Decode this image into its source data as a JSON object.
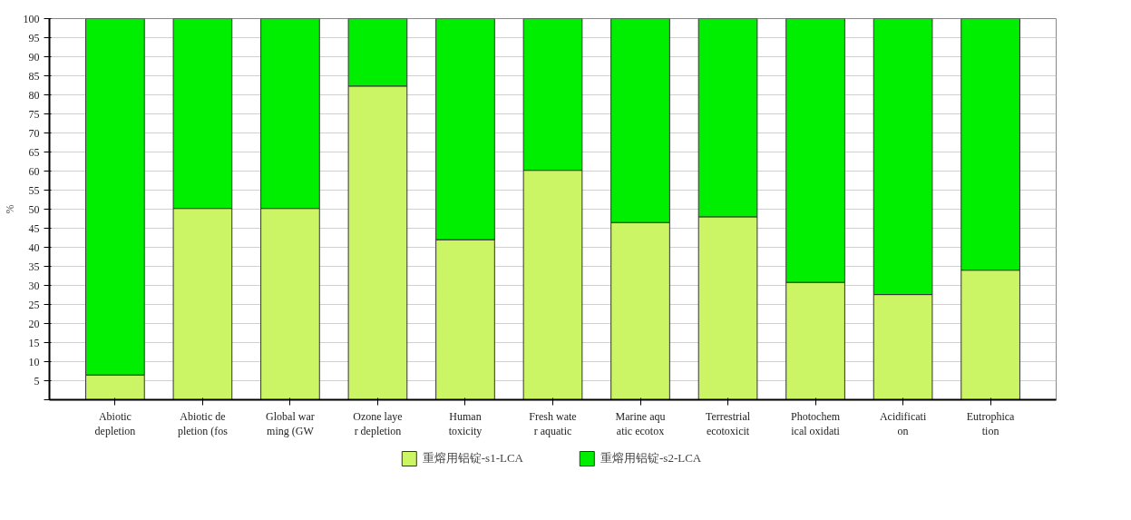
{
  "chart_data": {
    "type": "bar",
    "stacked": true,
    "ylabel": "%",
    "categories": [
      "Abiotic\ndepletion",
      "Abiotic de\npletion (fos",
      "Global war\nming (GW",
      "Ozone laye\nr depletion",
      "Human\ntoxicity",
      "Fresh wate\nr aquatic",
      "Marine aqu\natic ecotox",
      "Terrestrial\necotoxicit",
      "Photochem\nical oxidati",
      "Acidificati\non",
      "Eutrophica\ntion"
    ],
    "series": [
      {
        "name": "重熔用铝锭-s1-LCA",
        "color": "#ccf566",
        "values": [
          6.5,
          50.2,
          50.2,
          82.3,
          42,
          60.2,
          46.5,
          48,
          30.8,
          27.6,
          34
        ]
      },
      {
        "name": "重熔用铝锭-s2-LCA",
        "color": "#00ee00",
        "values": [
          93.5,
          49.8,
          49.8,
          17.7,
          58,
          39.8,
          53.5,
          52,
          69.2,
          72.4,
          66
        ]
      }
    ],
    "ylim": [
      0,
      100
    ],
    "yticks": [
      {
        "value": 0,
        "label": null
      },
      5,
      10,
      15,
      20,
      25,
      30,
      35,
      40,
      45,
      50,
      55,
      60,
      65,
      70,
      75,
      80,
      85,
      90,
      95,
      100
    ],
    "grid": "y",
    "legend": "bottom"
  }
}
